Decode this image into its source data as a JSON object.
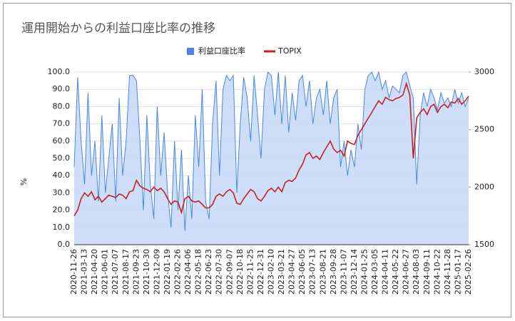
{
  "chart_data": {
    "type": "area-line",
    "title": "運用開始からの利益口座比率の推移",
    "y_label": "%",
    "legend": "top",
    "grid": true,
    "categories": [
      "2020-11-26",
      null,
      null,
      "2021-03-13",
      null,
      null,
      "2021-04-20",
      null,
      null,
      "2021-06-01",
      null,
      null,
      "2021-07-07",
      null,
      null,
      "2021-08-17",
      null,
      null,
      "2021-09-23",
      null,
      null,
      "2021-10-30",
      null,
      null,
      "2021-12-09",
      null,
      null,
      "2022-01-19",
      null,
      null,
      "2022-02-26",
      null,
      null,
      "2022-04-06",
      null,
      null,
      "2022-05-18",
      null,
      null,
      "2022-06-23",
      null,
      null,
      "2022-07-30",
      null,
      null,
      "2022-09-07",
      null,
      null,
      "2022-10-18",
      null,
      null,
      "2022-11-25",
      null,
      null,
      "2022-12-31",
      null,
      null,
      "2023-02-10",
      null,
      null,
      "2023-03-21",
      null,
      null,
      "2023-04-27",
      null,
      null,
      "2023-06-05",
      null,
      null,
      "2023-07-13",
      null,
      null,
      "2023-08-21",
      null,
      null,
      "2023-09-28",
      null,
      null,
      "2023-11-07",
      null,
      null,
      "2023-12-14",
      null,
      null,
      "2024-01-25",
      null,
      null,
      "2024-03-05",
      null,
      null,
      "2024-04-11",
      null,
      null,
      "2024-05-22",
      null,
      null,
      "2024-06-27",
      null,
      null,
      "2024-08-03",
      null,
      null,
      "2024-09-11",
      null,
      null,
      "2024-10-22",
      null,
      null,
      "2024-11-28",
      null,
      null,
      "2025-01-17",
      null,
      null,
      "2025-02-26"
    ],
    "series": [
      {
        "name": "利益口座比率",
        "color": "#4a86e8",
        "fill": "#c9daf8",
        "axis": "y",
        "values": [
          45,
          97,
          60,
          35,
          88,
          40,
          60,
          25,
          75,
          30,
          50,
          70,
          25,
          85,
          40,
          60,
          98,
          98,
          95,
          60,
          20,
          75,
          35,
          15,
          80,
          40,
          65,
          30,
          10,
          60,
          20,
          55,
          8,
          40,
          15,
          75,
          45,
          90,
          25,
          15,
          70,
          95,
          40,
          90,
          98,
          95,
          98,
          30,
          70,
          97,
          85,
          60,
          98,
          75,
          50,
          90,
          100,
          98,
          75,
          100,
          70,
          98,
          65,
          88,
          72,
          95,
          98,
          80,
          95,
          70,
          85,
          90,
          75,
          95,
          70,
          85,
          90,
          45,
          60,
          40,
          55,
          45,
          70,
          55,
          90,
          98,
          100,
          95,
          100,
          90,
          95,
          85,
          92,
          90,
          88,
          98,
          100,
          92,
          85,
          35,
          75,
          88,
          80,
          90,
          85,
          78,
          88,
          82,
          85,
          80,
          90,
          82,
          88,
          80,
          85
        ]
      },
      {
        "name": "TOPIX",
        "color": "#c5221f",
        "axis": "y2",
        "values": [
          1750,
          1800,
          1900,
          1950,
          1920,
          1960,
          1890,
          1920,
          1870,
          1900,
          1930,
          1920,
          1910,
          1940,
          1930,
          1900,
          1960,
          1970,
          2060,
          2010,
          1990,
          1980,
          1960,
          2000,
          1970,
          1990,
          1960,
          1900,
          1850,
          1880,
          1870,
          1780,
          1900,
          1920,
          1880,
          1870,
          1880,
          1850,
          1820,
          1820,
          1850,
          1920,
          1940,
          1920,
          1960,
          1980,
          1950,
          1860,
          1850,
          1900,
          1940,
          1980,
          1960,
          1900,
          1880,
          1920,
          1970,
          1990,
          1960,
          2000,
          1960,
          2040,
          2060,
          2050,
          2080,
          2150,
          2200,
          2280,
          2300,
          2250,
          2270,
          2240,
          2300,
          2350,
          2400,
          2330,
          2300,
          2320,
          2270,
          2400,
          2380,
          2370,
          2450,
          2500,
          2550,
          2600,
          2650,
          2700,
          2750,
          2720,
          2780,
          2760,
          2750,
          2770,
          2780,
          2800,
          2900,
          2800,
          2250,
          2600,
          2650,
          2680,
          2630,
          2700,
          2720,
          2650,
          2700,
          2720,
          2690,
          2740,
          2730,
          2770,
          2720,
          2750,
          2790
        ]
      }
    ],
    "ylim": [
      0,
      100
    ],
    "yticks": [
      {
        "value": 0,
        "label": "0.0"
      },
      {
        "value": 10,
        "label": "10.0"
      },
      {
        "value": 20,
        "label": "20.0"
      },
      {
        "value": 30,
        "label": "30.0"
      },
      {
        "value": 40,
        "label": "40.0"
      },
      {
        "value": 50,
        "label": "50.0"
      },
      {
        "value": 60,
        "label": "60.0"
      },
      {
        "value": 70,
        "label": "70.0"
      },
      {
        "value": 80,
        "label": "80.0"
      },
      {
        "value": 90,
        "label": "90.0"
      },
      {
        "value": 100,
        "label": "100.0"
      }
    ],
    "y2lim": [
      1500,
      3000
    ],
    "y2ticks": [
      1500,
      2000,
      2500,
      3000
    ]
  }
}
